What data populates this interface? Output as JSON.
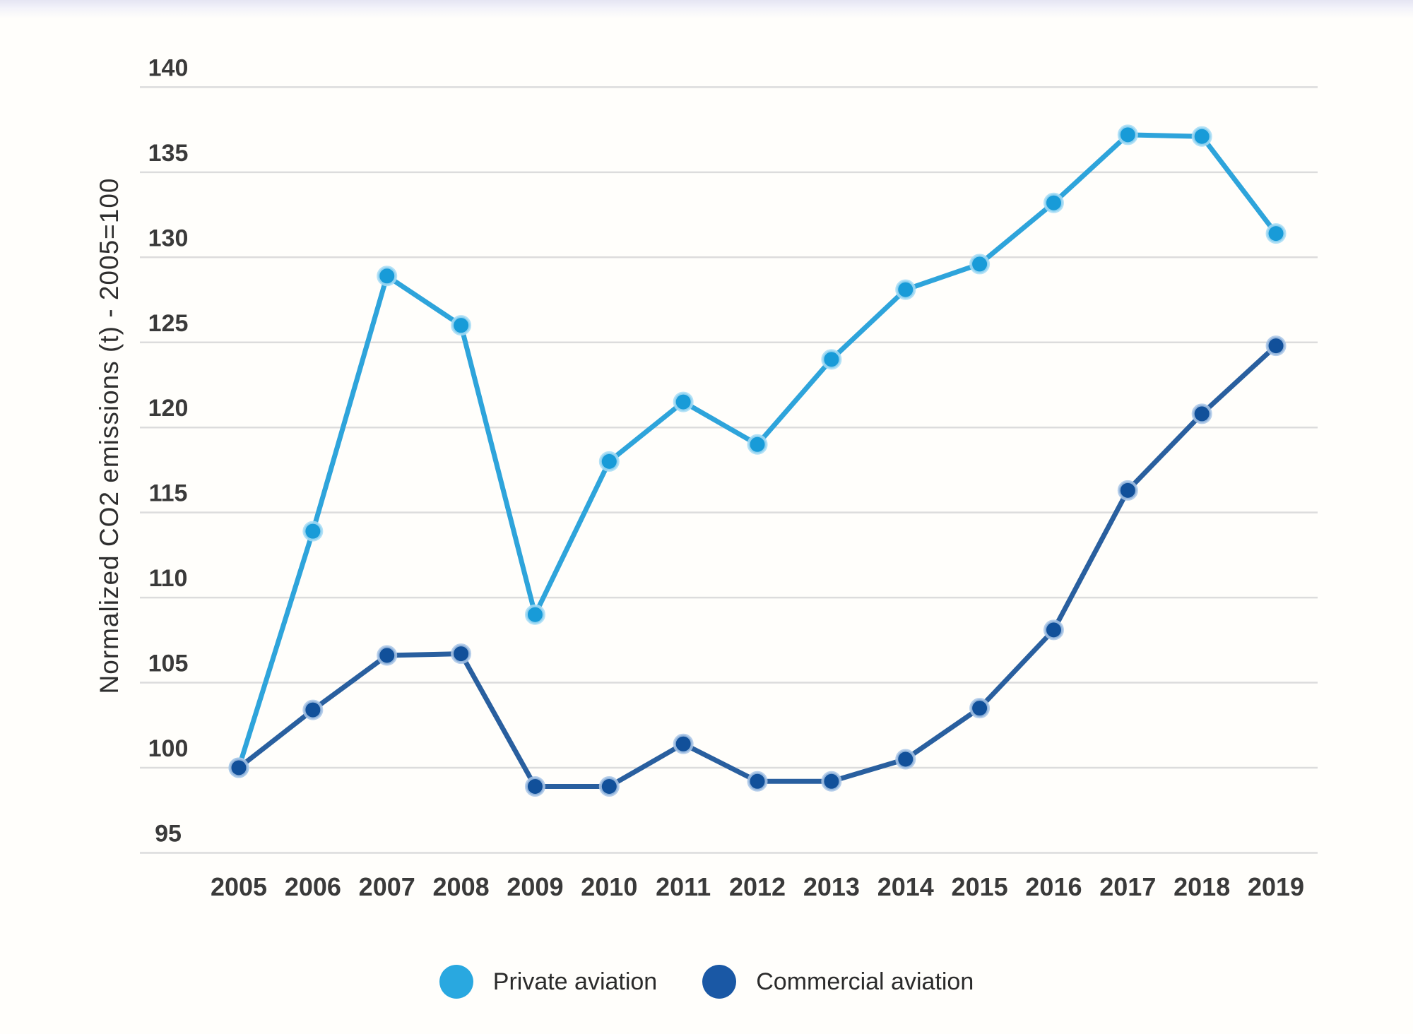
{
  "page": {
    "background": "#fffefb",
    "top_accent_colors": [
      "#e5e5f3",
      "#ffffff"
    ]
  },
  "chart_data": {
    "type": "line",
    "title": "",
    "xlabel": "",
    "ylabel": "Normalized CO2 emissions (t) - 2005=100",
    "ylim": [
      95,
      140
    ],
    "y_ticks": [
      140,
      135,
      130,
      125,
      120,
      115,
      110,
      105,
      100,
      95
    ],
    "grid": "horizontal light-gray gridlines",
    "legend_position": "bottom-center",
    "tick_color": "#3a3a3a",
    "grid_color": "#dcdcdc",
    "categories": [
      "2005",
      "2006",
      "2007",
      "2008",
      "2009",
      "2010",
      "2011",
      "2012",
      "2013",
      "2014",
      "2015",
      "2016",
      "2017",
      "2018",
      "2019"
    ],
    "series": [
      {
        "name": "Private aviation",
        "line_color": "#2EA4DB",
        "dot_color": "#189BD8",
        "halo_color": "#a6dcf4",
        "values": [
          100,
          113.9,
          128.9,
          126.0,
          109.0,
          118.0,
          121.5,
          119.0,
          124.0,
          128.1,
          129.6,
          133.2,
          137.2,
          137.1,
          131.4
        ]
      },
      {
        "name": "Commercial aviation",
        "line_color": "#295F9F",
        "dot_color": "#11509A",
        "halo_color": "#a9c6e6",
        "values": [
          100,
          103.4,
          106.6,
          106.7,
          98.9,
          98.9,
          101.4,
          99.2,
          99.2,
          100.5,
          103.5,
          108.1,
          116.3,
          120.8,
          124.8
        ]
      }
    ]
  },
  "legend": {
    "items": [
      {
        "label": "Private aviation",
        "color": "#29A8E0"
      },
      {
        "label": "Commercial aviation",
        "color": "#1A58A5"
      }
    ]
  }
}
